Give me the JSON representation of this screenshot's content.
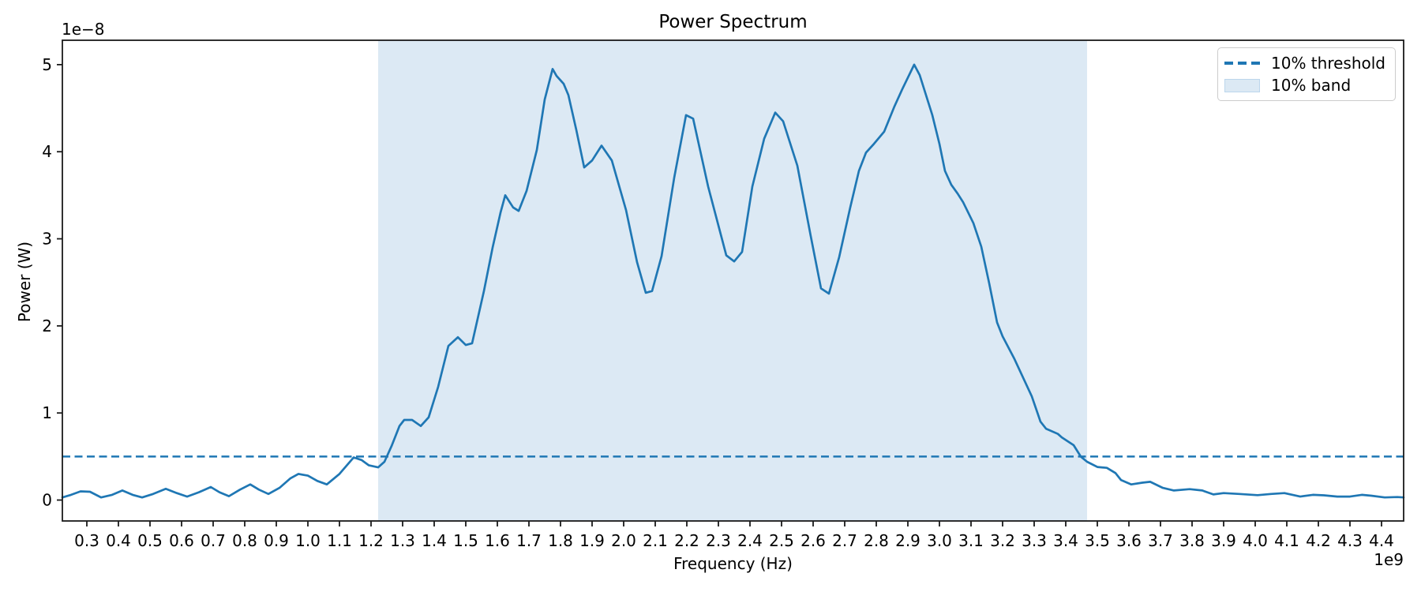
{
  "figure": {
    "title": "Power Spectrum",
    "xlabel": "Frequency (Hz)",
    "ylabel": "Power (W)",
    "x_offset_label": "1e9",
    "y_offset_label": "1e−8"
  },
  "legend": {
    "items": [
      {
        "swatch": "dashed-line",
        "label": "10% threshold"
      },
      {
        "swatch": "band",
        "label": "10% band"
      }
    ]
  },
  "colors": {
    "line": "#1f77b4",
    "threshold_line": "#1f77b4",
    "band_fill": "#dce9f4",
    "band_edge": "#bcd6ec",
    "axis": "#1a1a1a",
    "text": "#000000",
    "legend_border": "#cccccc"
  },
  "chart_data": {
    "type": "line",
    "title": "Power Spectrum",
    "xlabel": "Frequency (Hz)",
    "ylabel": "Power (W)",
    "x_scale_factor": "1e9",
    "y_scale_factor": "1e-8",
    "xlim": [
      0.2225,
      4.47
    ],
    "ylim": [
      -0.24,
      5.28
    ],
    "x_ticks": [
      0.3,
      0.4,
      0.5,
      0.6,
      0.7,
      0.8,
      0.9,
      1.0,
      1.1,
      1.2,
      1.3,
      1.4,
      1.5,
      1.6,
      1.7,
      1.8,
      1.9,
      2.0,
      2.1,
      2.2,
      2.3,
      2.4,
      2.5,
      2.6,
      2.7,
      2.8,
      2.9,
      3.0,
      3.1,
      3.2,
      3.3,
      3.4,
      3.5,
      3.6,
      3.7,
      3.8,
      3.9,
      4.0,
      4.1,
      4.2,
      4.3,
      4.4
    ],
    "y_ticks": [
      0,
      1,
      2,
      3,
      4,
      5
    ],
    "grid": false,
    "legend_position": "upper right",
    "threshold": {
      "value": 0.5,
      "label": "10% threshold",
      "style": "dashed"
    },
    "band": {
      "x_start": 1.2225,
      "x_end": 3.4675,
      "label": "10% band"
    },
    "series": [
      {
        "name": "power-spectrum",
        "points": [
          [
            0.2225,
            0.03
          ],
          [
            0.25,
            0.06
          ],
          [
            0.28,
            0.1
          ],
          [
            0.31,
            0.095
          ],
          [
            0.345,
            0.03
          ],
          [
            0.38,
            0.06
          ],
          [
            0.4125,
            0.11
          ],
          [
            0.445,
            0.06
          ],
          [
            0.475,
            0.03
          ],
          [
            0.51,
            0.07
          ],
          [
            0.55,
            0.13
          ],
          [
            0.585,
            0.08
          ],
          [
            0.6175,
            0.04
          ],
          [
            0.655,
            0.09
          ],
          [
            0.6925,
            0.15
          ],
          [
            0.72,
            0.09
          ],
          [
            0.75,
            0.045
          ],
          [
            0.785,
            0.12
          ],
          [
            0.8175,
            0.18
          ],
          [
            0.845,
            0.12
          ],
          [
            0.875,
            0.07
          ],
          [
            0.91,
            0.14
          ],
          [
            0.945,
            0.25
          ],
          [
            0.97,
            0.3
          ],
          [
            1.0,
            0.28
          ],
          [
            1.03,
            0.22
          ],
          [
            1.06,
            0.18
          ],
          [
            1.1,
            0.3
          ],
          [
            1.145,
            0.49
          ],
          [
            1.17,
            0.46
          ],
          [
            1.1925,
            0.4
          ],
          [
            1.2225,
            0.375
          ],
          [
            1.2425,
            0.44
          ],
          [
            1.265,
            0.62
          ],
          [
            1.29,
            0.85
          ],
          [
            1.305,
            0.92
          ],
          [
            1.33,
            0.92
          ],
          [
            1.3575,
            0.85
          ],
          [
            1.3825,
            0.95
          ],
          [
            1.4125,
            1.3
          ],
          [
            1.445,
            1.77
          ],
          [
            1.475,
            1.87
          ],
          [
            1.5,
            1.78
          ],
          [
            1.52,
            1.8
          ],
          [
            1.5575,
            2.4
          ],
          [
            1.585,
            2.9
          ],
          [
            1.61,
            3.3
          ],
          [
            1.625,
            3.5
          ],
          [
            1.65,
            3.36
          ],
          [
            1.6675,
            3.32
          ],
          [
            1.6925,
            3.55
          ],
          [
            1.725,
            4.02
          ],
          [
            1.75,
            4.6
          ],
          [
            1.775,
            4.95
          ],
          [
            1.7875,
            4.87
          ],
          [
            1.81,
            4.78
          ],
          [
            1.825,
            4.65
          ],
          [
            1.85,
            4.25
          ],
          [
            1.875,
            3.82
          ],
          [
            1.9,
            3.9
          ],
          [
            1.93,
            4.07
          ],
          [
            1.9625,
            3.9
          ],
          [
            2.0075,
            3.33
          ],
          [
            2.0425,
            2.73
          ],
          [
            2.07,
            2.38
          ],
          [
            2.09,
            2.4
          ],
          [
            2.12,
            2.8
          ],
          [
            2.16,
            3.7
          ],
          [
            2.1975,
            4.42
          ],
          [
            2.22,
            4.38
          ],
          [
            2.2675,
            3.6
          ],
          [
            2.325,
            2.81
          ],
          [
            2.35,
            2.74
          ],
          [
            2.375,
            2.85
          ],
          [
            2.4075,
            3.6
          ],
          [
            2.445,
            4.15
          ],
          [
            2.48,
            4.45
          ],
          [
            2.505,
            4.35
          ],
          [
            2.55,
            3.84
          ],
          [
            2.5925,
            3.03
          ],
          [
            2.625,
            2.43
          ],
          [
            2.65,
            2.37
          ],
          [
            2.6825,
            2.79
          ],
          [
            2.7175,
            3.36
          ],
          [
            2.745,
            3.78
          ],
          [
            2.7675,
            3.99
          ],
          [
            2.7925,
            4.09
          ],
          [
            2.825,
            4.23
          ],
          [
            2.8575,
            4.52
          ],
          [
            2.8825,
            4.72
          ],
          [
            2.92,
            5.0
          ],
          [
            2.9375,
            4.88
          ],
          [
            2.9575,
            4.65
          ],
          [
            2.9775,
            4.42
          ],
          [
            3.0,
            4.09
          ],
          [
            3.0175,
            3.78
          ],
          [
            3.0375,
            3.62
          ],
          [
            3.0575,
            3.52
          ],
          [
            3.075,
            3.42
          ],
          [
            3.1075,
            3.18
          ],
          [
            3.1325,
            2.91
          ],
          [
            3.1575,
            2.49
          ],
          [
            3.1825,
            2.04
          ],
          [
            3.2,
            1.88
          ],
          [
            3.2375,
            1.62
          ],
          [
            3.2925,
            1.19
          ],
          [
            3.32,
            0.9
          ],
          [
            3.3375,
            0.82
          ],
          [
            3.375,
            0.76
          ],
          [
            3.3875,
            0.72
          ],
          [
            3.425,
            0.63
          ],
          [
            3.4475,
            0.5
          ],
          [
            3.4675,
            0.44
          ],
          [
            3.5,
            0.38
          ],
          [
            3.53,
            0.37
          ],
          [
            3.5575,
            0.31
          ],
          [
            3.575,
            0.23
          ],
          [
            3.6075,
            0.18
          ],
          [
            3.6425,
            0.2
          ],
          [
            3.6675,
            0.21
          ],
          [
            3.7075,
            0.14
          ],
          [
            3.7425,
            0.11
          ],
          [
            3.7925,
            0.125
          ],
          [
            3.8325,
            0.11
          ],
          [
            3.8675,
            0.065
          ],
          [
            3.9,
            0.08
          ],
          [
            3.95,
            0.07
          ],
          [
            4.0075,
            0.056
          ],
          [
            4.05,
            0.07
          ],
          [
            4.0925,
            0.08
          ],
          [
            4.1425,
            0.04
          ],
          [
            4.1825,
            0.06
          ],
          [
            4.2175,
            0.055
          ],
          [
            4.26,
            0.04
          ],
          [
            4.3,
            0.04
          ],
          [
            4.3375,
            0.06
          ],
          [
            4.3675,
            0.05
          ],
          [
            4.41,
            0.03
          ],
          [
            4.45,
            0.035
          ],
          [
            4.47,
            0.03
          ]
        ]
      }
    ]
  }
}
